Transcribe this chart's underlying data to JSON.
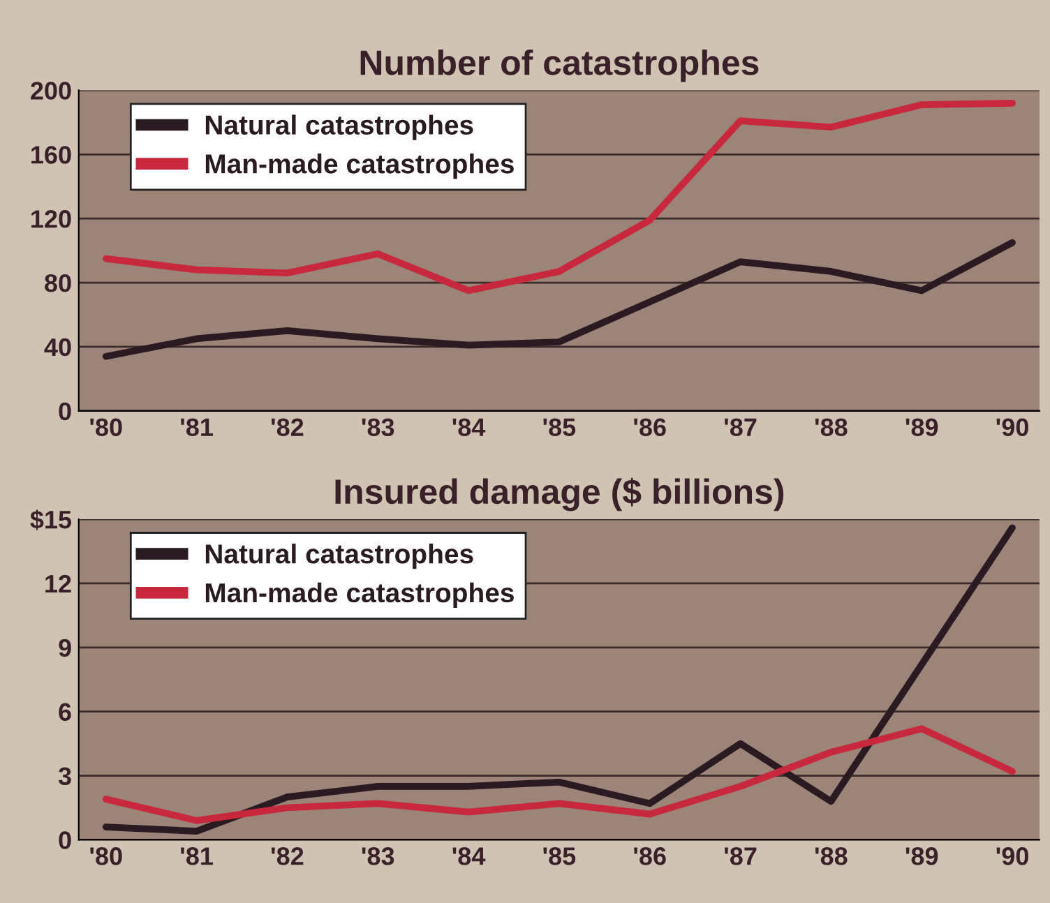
{
  "chart_data": [
    {
      "type": "line",
      "title": "Number of catastrophes",
      "categories": [
        "'80",
        "'81",
        "'82",
        "'83",
        "'84",
        "'85",
        "'86",
        "'87",
        "'88",
        "'89",
        "'90"
      ],
      "series": [
        {
          "name": "Natural catastrophes",
          "color": "#2a1a22",
          "values": [
            34,
            45,
            50,
            45,
            41,
            43,
            68,
            93,
            87,
            75,
            105
          ]
        },
        {
          "name": "Man-made catastrophes",
          "color": "#c8283c",
          "values": [
            95,
            88,
            86,
            98,
            75,
            87,
            119,
            181,
            177,
            191,
            192
          ]
        }
      ],
      "ylim": [
        0,
        200
      ],
      "yticks": [
        0,
        40,
        80,
        120,
        160,
        200
      ],
      "grid": "y",
      "legend": "top left"
    },
    {
      "type": "line",
      "title": "Insured damage ($ billions)",
      "categories": [
        "'80",
        "'81",
        "'82",
        "'83",
        "'84",
        "'85",
        "'86",
        "'87",
        "'88",
        "'89",
        "'90"
      ],
      "series": [
        {
          "name": "Natural catastrophes",
          "color": "#2a1a22",
          "values": [
            0.6,
            0.4,
            2.0,
            2.5,
            2.5,
            2.7,
            1.7,
            4.5,
            1.8,
            8.2,
            14.6
          ]
        },
        {
          "name": "Man-made catastrophes",
          "color": "#c8283c",
          "values": [
            1.9,
            0.9,
            1.5,
            1.7,
            1.3,
            1.7,
            1.2,
            2.5,
            4.1,
            5.2,
            3.2
          ]
        }
      ],
      "ylim": [
        0,
        15
      ],
      "yticks": [
        0,
        3,
        6,
        9,
        12,
        {
          "value": 15,
          "label": "$15"
        }
      ],
      "grid": "y",
      "legend": "top left"
    }
  ]
}
